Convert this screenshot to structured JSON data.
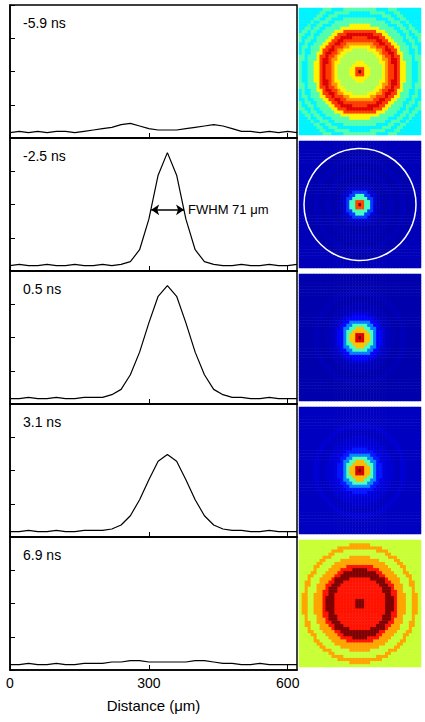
{
  "chart_data": [
    {
      "type": "line",
      "title": "-5.9 ns",
      "color": "#000000",
      "x": [
        0,
        20,
        40,
        60,
        80,
        100,
        120,
        140,
        160,
        180,
        200,
        220,
        240,
        260,
        280,
        300,
        320,
        340,
        360,
        380,
        400,
        420,
        440,
        460,
        480,
        500,
        520,
        540,
        560,
        580,
        600,
        620
      ],
      "values": [
        0.04,
        0.05,
        0.04,
        0.05,
        0.04,
        0.05,
        0.05,
        0.04,
        0.05,
        0.06,
        0.07,
        0.08,
        0.1,
        0.11,
        0.09,
        0.07,
        0.06,
        0.06,
        0.06,
        0.07,
        0.08,
        0.09,
        0.1,
        0.09,
        0.07,
        0.05,
        0.05,
        0.04,
        0.05,
        0.04,
        0.05,
        0.04
      ],
      "xlim": [
        0,
        620
      ],
      "ylim": [
        0,
        1
      ],
      "xticks": [
        0,
        300,
        600
      ],
      "yticks": [
        0,
        0.25,
        0.5,
        0.75,
        1
      ],
      "tick_labels": false
    },
    {
      "type": "line",
      "title": "-2.5 ns",
      "color": "#000000",
      "x": [
        0,
        20,
        40,
        60,
        80,
        100,
        120,
        140,
        160,
        180,
        200,
        220,
        240,
        260,
        280,
        300,
        320,
        340,
        360,
        380,
        400,
        420,
        440,
        460,
        480,
        500,
        520,
        540,
        560,
        580,
        600,
        620
      ],
      "values": [
        0.04,
        0.05,
        0.04,
        0.04,
        0.05,
        0.04,
        0.04,
        0.05,
        0.04,
        0.04,
        0.05,
        0.04,
        0.05,
        0.07,
        0.16,
        0.39,
        0.72,
        0.89,
        0.72,
        0.39,
        0.16,
        0.07,
        0.05,
        0.04,
        0.04,
        0.05,
        0.04,
        0.04,
        0.05,
        0.04,
        0.04,
        0.05
      ],
      "xlim": [
        0,
        620
      ],
      "ylim": [
        0,
        1
      ],
      "xticks": [
        0,
        300,
        600
      ],
      "yticks": [
        0,
        0.25,
        0.5,
        0.75,
        1
      ],
      "tick_labels": false,
      "annotations": [
        {
          "text": "FWHM 71 μm",
          "x": [
            305,
            376
          ],
          "y": 0.46
        }
      ]
    },
    {
      "type": "line",
      "title": "0.5 ns",
      "color": "#000000",
      "x": [
        0,
        20,
        40,
        60,
        80,
        100,
        120,
        140,
        160,
        180,
        200,
        220,
        240,
        260,
        280,
        300,
        320,
        340,
        360,
        380,
        400,
        420,
        440,
        460,
        480,
        500,
        520,
        540,
        560,
        580,
        600,
        620
      ],
      "values": [
        0.04,
        0.04,
        0.05,
        0.04,
        0.04,
        0.05,
        0.04,
        0.04,
        0.05,
        0.05,
        0.05,
        0.07,
        0.11,
        0.22,
        0.39,
        0.61,
        0.81,
        0.89,
        0.81,
        0.61,
        0.39,
        0.22,
        0.11,
        0.07,
        0.05,
        0.05,
        0.04,
        0.04,
        0.05,
        0.04,
        0.04,
        0.04
      ],
      "xlim": [
        0,
        620
      ],
      "ylim": [
        0,
        1
      ],
      "xticks": [
        0,
        300,
        600
      ],
      "yticks": [
        0,
        0.25,
        0.5,
        0.75,
        1
      ],
      "tick_labels": false
    },
    {
      "type": "line",
      "title": "3.1 ns",
      "color": "#000000",
      "x": [
        0,
        20,
        40,
        60,
        80,
        100,
        120,
        140,
        160,
        180,
        200,
        220,
        240,
        260,
        280,
        300,
        320,
        340,
        360,
        380,
        400,
        420,
        440,
        460,
        480,
        500,
        520,
        540,
        560,
        580,
        600,
        620
      ],
      "values": [
        0.04,
        0.04,
        0.05,
        0.04,
        0.04,
        0.05,
        0.04,
        0.04,
        0.05,
        0.05,
        0.05,
        0.06,
        0.09,
        0.16,
        0.28,
        0.43,
        0.57,
        0.62,
        0.57,
        0.43,
        0.28,
        0.16,
        0.09,
        0.06,
        0.05,
        0.05,
        0.04,
        0.04,
        0.05,
        0.04,
        0.04,
        0.04
      ],
      "xlim": [
        0,
        620
      ],
      "ylim": [
        0,
        1
      ],
      "xticks": [
        0,
        300,
        600
      ],
      "yticks": [
        0,
        0.25,
        0.5,
        0.75,
        1
      ],
      "tick_labels": false
    },
    {
      "type": "line",
      "title": "6.9 ns",
      "color": "#000000",
      "x": [
        0,
        20,
        40,
        60,
        80,
        100,
        120,
        140,
        160,
        180,
        200,
        220,
        240,
        260,
        280,
        300,
        320,
        340,
        360,
        380,
        400,
        420,
        440,
        460,
        480,
        500,
        520,
        540,
        560,
        580,
        600,
        620
      ],
      "values": [
        0.04,
        0.04,
        0.05,
        0.04,
        0.04,
        0.05,
        0.04,
        0.04,
        0.05,
        0.05,
        0.05,
        0.06,
        0.06,
        0.07,
        0.07,
        0.06,
        0.06,
        0.06,
        0.06,
        0.06,
        0.07,
        0.07,
        0.06,
        0.05,
        0.05,
        0.04,
        0.04,
        0.05,
        0.04,
        0.04,
        0.04,
        0.04
      ],
      "xlim": [
        0,
        620
      ],
      "ylim": [
        0,
        1
      ],
      "xticks": [
        0,
        300,
        600
      ],
      "yticks": [
        0,
        0.25,
        0.5,
        0.75,
        1
      ],
      "tick_labels": "x",
      "x_label": "Distance (μm)"
    }
  ]
}
